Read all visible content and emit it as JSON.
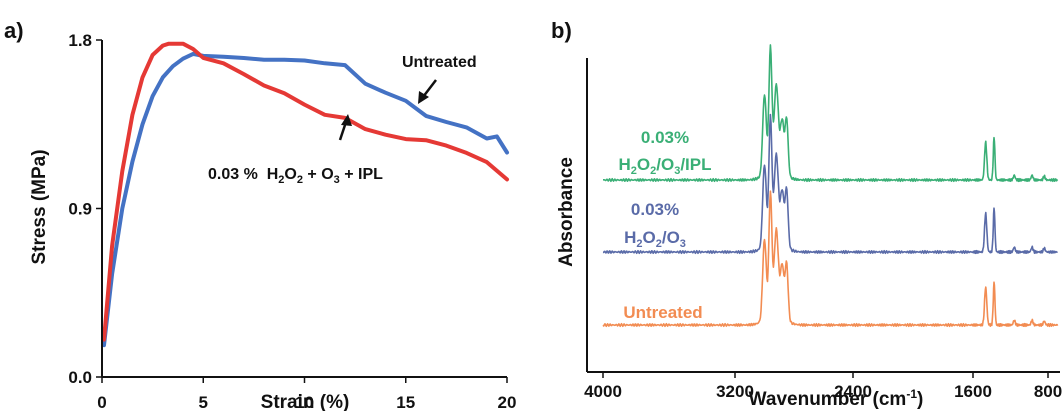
{
  "chart_data": [
    {
      "panel_label": "a)",
      "type": "line",
      "xlabel": "Strain (%)",
      "ylabel": "Stress (MPa)",
      "xlim": [
        0,
        20
      ],
      "ylim": [
        0.0,
        1.8
      ],
      "x_ticks": [
        "0",
        "5",
        "10",
        "15",
        "20"
      ],
      "y_ticks": [
        "0.0",
        "0.9",
        "1.8"
      ],
      "grid": false,
      "series": [
        {
          "name": "Untreated",
          "color": "#4472c4",
          "x": [
            0.1,
            0.5,
            1.0,
            1.5,
            2.0,
            2.5,
            3.0,
            3.5,
            4.0,
            4.5,
            5.0,
            6.0,
            7.0,
            8.0,
            9.0,
            10.0,
            11.0,
            12.0,
            13.0,
            14.0,
            15.0,
            16.0,
            17.0,
            18.0,
            19.0,
            19.5,
            20.0
          ],
          "y": [
            0.17,
            0.55,
            0.9,
            1.15,
            1.35,
            1.5,
            1.6,
            1.66,
            1.7,
            1.72,
            1.72,
            1.71,
            1.7,
            1.7,
            1.69,
            1.69,
            1.68,
            1.66,
            1.57,
            1.52,
            1.47,
            1.4,
            1.36,
            1.33,
            1.28,
            1.28,
            1.2
          ]
        },
        {
          "name": "0.03 % H2O2 + O3 + IPL",
          "color": "#e53935",
          "x": [
            0.1,
            0.5,
            1.0,
            1.5,
            2.0,
            2.5,
            3.0,
            3.3,
            4.0,
            4.5,
            5.0,
            6.0,
            7.0,
            8.0,
            9.0,
            10.0,
            11.0,
            12.0,
            13.0,
            14.0,
            15.0,
            16.0,
            17.0,
            18.0,
            19.0,
            20.0
          ],
          "y": [
            0.2,
            0.7,
            1.1,
            1.4,
            1.6,
            1.72,
            1.77,
            1.78,
            1.78,
            1.75,
            1.71,
            1.67,
            1.62,
            1.56,
            1.51,
            1.46,
            1.4,
            1.38,
            1.33,
            1.29,
            1.27,
            1.27,
            1.23,
            1.2,
            1.15,
            1.05
          ]
        }
      ],
      "annotations": {
        "untreated_label": "Untreated",
        "treated_label_prefix": "0.03 %  H",
        "treated_sub_1": "2",
        "treated_mid": "O",
        "treated_sub_2": "2",
        "treated_plus_1": " + O",
        "treated_sub_3": "3",
        "treated_suffix": " + IPL"
      }
    },
    {
      "panel_label": "b)",
      "type": "line",
      "xlabel": "Wavenumber (cm",
      "xlabel_sup": "-1",
      "xlabel_end": ")",
      "ylabel": "Absorbance",
      "xlim": [
        4000,
        700
      ],
      "x_reversed": true,
      "x_ticks": [
        "4000",
        "3200",
        "2400",
        "1600",
        "800"
      ],
      "grid": false,
      "series": [
        {
          "name": "0.03% H2O2/O3/IPL",
          "color": "#3aaf76",
          "label_line1": "0.03%",
          "label_line2_parts": [
            "H",
            "2",
            "O",
            "2",
            "/O",
            "3",
            "/IPL"
          ],
          "offset": 2.0
        },
        {
          "name": "0.03% H2O2/O3",
          "color": "#5a6ba8",
          "label_line1": "0.03%",
          "label_line2_parts": [
            "H",
            "2",
            "O",
            "2",
            "/O",
            "3"
          ],
          "offset": 1.0
        },
        {
          "name": "Untreated",
          "color": "#f28c52",
          "label_line1": "Untreated",
          "offset": 0.0
        }
      ],
      "peaks_cm": [
        {
          "x": 3000,
          "height": 0.85,
          "width": 12
        },
        {
          "x": 2960,
          "height": 1.3,
          "width": 10
        },
        {
          "x": 2920,
          "height": 0.9,
          "width": 14
        },
        {
          "x": 2880,
          "height": 0.55,
          "width": 12
        },
        {
          "x": 2850,
          "height": 0.6,
          "width": 10
        },
        {
          "x": 1465,
          "height": 0.4,
          "width": 12
        },
        {
          "x": 1375,
          "height": 0.45,
          "width": 9
        },
        {
          "x": 1160,
          "height": 0.05,
          "width": 10
        },
        {
          "x": 970,
          "height": 0.05,
          "width": 10
        },
        {
          "x": 840,
          "height": 0.04,
          "width": 10
        }
      ]
    }
  ]
}
